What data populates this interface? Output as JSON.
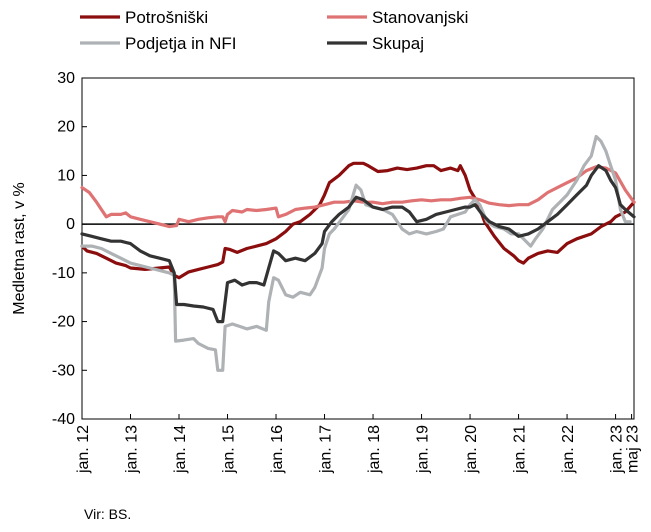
{
  "chart_data": {
    "type": "line",
    "ylabel": "Medletna rast, v %",
    "ylim": [
      -40,
      30
    ],
    "yticks": [
      30,
      20,
      10,
      0,
      -10,
      -20,
      -30,
      -40
    ],
    "xlim": [
      2012.0,
      2023.38
    ],
    "xticks": [
      {
        "x": 2012.0,
        "label": "jan. 12"
      },
      {
        "x": 2013.0,
        "label": "jan. 13"
      },
      {
        "x": 2014.0,
        "label": "jan. 14"
      },
      {
        "x": 2015.0,
        "label": "jan. 15"
      },
      {
        "x": 2016.0,
        "label": "jan. 16"
      },
      {
        "x": 2017.0,
        "label": "jan. 17"
      },
      {
        "x": 2018.0,
        "label": "jan. 18"
      },
      {
        "x": 2019.0,
        "label": "jan. 19"
      },
      {
        "x": 2020.0,
        "label": "jan. 20"
      },
      {
        "x": 2021.0,
        "label": "jan. 21"
      },
      {
        "x": 2022.0,
        "label": "jan. 22"
      },
      {
        "x": 2023.0,
        "label": "jan. 23"
      },
      {
        "x": 2023.33,
        "label": "maj 23"
      }
    ],
    "grid": false,
    "zero_line": true,
    "legend_position": "top",
    "series": [
      {
        "name": "Potrošniški",
        "color": "#8b0d0d",
        "width": 3.2,
        "points": [
          [
            2012.0,
            -4.5
          ],
          [
            2012.1,
            -5.5
          ],
          [
            2012.3,
            -6.0
          ],
          [
            2012.5,
            -7.0
          ],
          [
            2012.7,
            -8.0
          ],
          [
            2012.9,
            -8.5
          ],
          [
            2013.0,
            -9.0
          ],
          [
            2013.3,
            -9.3
          ],
          [
            2013.6,
            -9.0
          ],
          [
            2013.8,
            -8.8
          ],
          [
            2013.9,
            -10.5
          ],
          [
            2014.0,
            -11.0
          ],
          [
            2014.2,
            -9.8
          ],
          [
            2014.4,
            -9.3
          ],
          [
            2014.6,
            -8.8
          ],
          [
            2014.8,
            -8.3
          ],
          [
            2014.9,
            -7.8
          ],
          [
            2014.95,
            -5.0
          ],
          [
            2015.05,
            -5.2
          ],
          [
            2015.2,
            -5.8
          ],
          [
            2015.4,
            -5.0
          ],
          [
            2015.6,
            -4.5
          ],
          [
            2015.8,
            -4.0
          ],
          [
            2016.0,
            -3.0
          ],
          [
            2016.2,
            -1.5
          ],
          [
            2016.35,
            0.0
          ],
          [
            2016.5,
            0.5
          ],
          [
            2016.7,
            2.0
          ],
          [
            2016.9,
            4.0
          ],
          [
            2017.0,
            6.0
          ],
          [
            2017.1,
            8.5
          ],
          [
            2017.3,
            10.0
          ],
          [
            2017.5,
            12.0
          ],
          [
            2017.6,
            12.5
          ],
          [
            2017.8,
            12.5
          ],
          [
            2017.9,
            12.0
          ],
          [
            2018.1,
            10.8
          ],
          [
            2018.3,
            11.0
          ],
          [
            2018.5,
            11.5
          ],
          [
            2018.7,
            11.2
          ],
          [
            2018.9,
            11.5
          ],
          [
            2019.1,
            12.0
          ],
          [
            2019.25,
            12.0
          ],
          [
            2019.4,
            11.0
          ],
          [
            2019.6,
            11.5
          ],
          [
            2019.75,
            11.0
          ],
          [
            2019.8,
            12.0
          ],
          [
            2019.9,
            10.0
          ],
          [
            2020.0,
            7.0
          ],
          [
            2020.15,
            4.5
          ],
          [
            2020.3,
            0.5
          ],
          [
            2020.5,
            -2.5
          ],
          [
            2020.7,
            -5.0
          ],
          [
            2020.9,
            -6.5
          ],
          [
            2021.0,
            -7.5
          ],
          [
            2021.1,
            -8.0
          ],
          [
            2021.2,
            -7.0
          ],
          [
            2021.4,
            -6.0
          ],
          [
            2021.6,
            -5.5
          ],
          [
            2021.8,
            -5.8
          ],
          [
            2022.0,
            -4.0
          ],
          [
            2022.2,
            -3.0
          ],
          [
            2022.5,
            -2.0
          ],
          [
            2022.7,
            -0.5
          ],
          [
            2022.9,
            0.5
          ],
          [
            2023.0,
            1.5
          ],
          [
            2023.2,
            2.5
          ],
          [
            2023.38,
            4.5
          ]
        ]
      },
      {
        "name": "Stanovanjski",
        "color": "#df7373",
        "width": 3.2,
        "points": [
          [
            2012.0,
            7.5
          ],
          [
            2012.15,
            6.5
          ],
          [
            2012.3,
            4.5
          ],
          [
            2012.4,
            3.0
          ],
          [
            2012.5,
            1.5
          ],
          [
            2012.6,
            2.0
          ],
          [
            2012.8,
            2.0
          ],
          [
            2012.9,
            2.3
          ],
          [
            2013.0,
            1.5
          ],
          [
            2013.2,
            1.0
          ],
          [
            2013.4,
            0.5
          ],
          [
            2013.6,
            0.0
          ],
          [
            2013.8,
            -0.5
          ],
          [
            2013.95,
            -0.3
          ],
          [
            2014.0,
            1.0
          ],
          [
            2014.2,
            0.5
          ],
          [
            2014.4,
            1.0
          ],
          [
            2014.6,
            1.3
          ],
          [
            2014.8,
            1.5
          ],
          [
            2014.9,
            1.5
          ],
          [
            2014.95,
            0.5
          ],
          [
            2015.0,
            2.0
          ],
          [
            2015.1,
            2.8
          ],
          [
            2015.3,
            2.5
          ],
          [
            2015.4,
            3.0
          ],
          [
            2015.6,
            2.8
          ],
          [
            2015.8,
            3.0
          ],
          [
            2016.0,
            3.3
          ],
          [
            2016.05,
            1.5
          ],
          [
            2016.2,
            2.0
          ],
          [
            2016.4,
            3.0
          ],
          [
            2016.6,
            3.3
          ],
          [
            2016.8,
            3.5
          ],
          [
            2017.0,
            4.0
          ],
          [
            2017.2,
            4.5
          ],
          [
            2017.4,
            4.5
          ],
          [
            2017.6,
            4.8
          ],
          [
            2017.8,
            4.5
          ],
          [
            2018.0,
            4.5
          ],
          [
            2018.2,
            4.2
          ],
          [
            2018.4,
            4.5
          ],
          [
            2018.6,
            4.5
          ],
          [
            2018.8,
            4.8
          ],
          [
            2019.0,
            5.0
          ],
          [
            2019.2,
            4.8
          ],
          [
            2019.4,
            5.0
          ],
          [
            2019.6,
            5.0
          ],
          [
            2019.8,
            5.3
          ],
          [
            2020.0,
            5.5
          ],
          [
            2020.2,
            5.0
          ],
          [
            2020.4,
            4.3
          ],
          [
            2020.6,
            4.0
          ],
          [
            2020.8,
            3.8
          ],
          [
            2021.0,
            4.0
          ],
          [
            2021.2,
            4.0
          ],
          [
            2021.4,
            5.0
          ],
          [
            2021.6,
            6.5
          ],
          [
            2021.8,
            7.5
          ],
          [
            2022.0,
            8.5
          ],
          [
            2022.2,
            9.5
          ],
          [
            2022.4,
            11.0
          ],
          [
            2022.6,
            11.8
          ],
          [
            2022.8,
            11.5
          ],
          [
            2023.0,
            10.5
          ],
          [
            2023.2,
            7.0
          ],
          [
            2023.38,
            4.5
          ]
        ]
      },
      {
        "name": "Podjetja in NFI",
        "color": "#aeb2b5",
        "width": 3.2,
        "points": [
          [
            2012.0,
            -4.5
          ],
          [
            2012.2,
            -4.5
          ],
          [
            2012.4,
            -5.0
          ],
          [
            2012.6,
            -6.0
          ],
          [
            2012.8,
            -7.0
          ],
          [
            2013.0,
            -8.0
          ],
          [
            2013.2,
            -8.5
          ],
          [
            2013.4,
            -9.0
          ],
          [
            2013.6,
            -9.5
          ],
          [
            2013.8,
            -10.0
          ],
          [
            2013.9,
            -10.5
          ],
          [
            2013.93,
            -24.0
          ],
          [
            2014.1,
            -23.8
          ],
          [
            2014.3,
            -23.5
          ],
          [
            2014.4,
            -24.5
          ],
          [
            2014.6,
            -25.5
          ],
          [
            2014.75,
            -25.8
          ],
          [
            2014.8,
            -30.0
          ],
          [
            2014.9,
            -30.0
          ],
          [
            2014.95,
            -21.0
          ],
          [
            2015.1,
            -20.5
          ],
          [
            2015.25,
            -21.0
          ],
          [
            2015.4,
            -21.5
          ],
          [
            2015.6,
            -21.0
          ],
          [
            2015.8,
            -21.8
          ],
          [
            2015.85,
            -16.0
          ],
          [
            2015.95,
            -11.0
          ],
          [
            2016.05,
            -11.5
          ],
          [
            2016.2,
            -14.5
          ],
          [
            2016.35,
            -15.0
          ],
          [
            2016.5,
            -14.0
          ],
          [
            2016.7,
            -14.5
          ],
          [
            2016.8,
            -13.0
          ],
          [
            2016.95,
            -9.0
          ],
          [
            2017.0,
            -5.0
          ],
          [
            2017.1,
            -2.0
          ],
          [
            2017.2,
            -1.0
          ],
          [
            2017.35,
            1.0
          ],
          [
            2017.5,
            3.0
          ],
          [
            2017.65,
            8.0
          ],
          [
            2017.75,
            7.0
          ],
          [
            2017.85,
            4.0
          ],
          [
            2018.0,
            3.5
          ],
          [
            2018.2,
            3.0
          ],
          [
            2018.4,
            2.0
          ],
          [
            2018.6,
            -1.0
          ],
          [
            2018.75,
            -2.0
          ],
          [
            2018.9,
            -1.5
          ],
          [
            2019.1,
            -2.0
          ],
          [
            2019.3,
            -1.5
          ],
          [
            2019.45,
            -1.0
          ],
          [
            2019.6,
            1.5
          ],
          [
            2019.75,
            2.0
          ],
          [
            2019.9,
            2.5
          ],
          [
            2020.0,
            4.0
          ],
          [
            2020.1,
            5.0
          ],
          [
            2020.2,
            4.0
          ],
          [
            2020.35,
            0.5
          ],
          [
            2020.5,
            -0.5
          ],
          [
            2020.7,
            -1.0
          ],
          [
            2020.85,
            -2.0
          ],
          [
            2021.0,
            -2.0
          ],
          [
            2021.1,
            -3.0
          ],
          [
            2021.25,
            -4.5
          ],
          [
            2021.35,
            -3.0
          ],
          [
            2021.5,
            -1.0
          ],
          [
            2021.7,
            3.0
          ],
          [
            2021.85,
            4.5
          ],
          [
            2022.0,
            6.0
          ],
          [
            2022.2,
            9.0
          ],
          [
            2022.35,
            12.0
          ],
          [
            2022.5,
            14.0
          ],
          [
            2022.6,
            18.0
          ],
          [
            2022.7,
            17.0
          ],
          [
            2022.8,
            15.0
          ],
          [
            2022.9,
            12.0
          ],
          [
            2023.0,
            9.0
          ],
          [
            2023.1,
            3.0
          ],
          [
            2023.2,
            0.5
          ],
          [
            2023.3,
            0.5
          ]
        ]
      },
      {
        "name": "Skupaj",
        "color": "#333333",
        "width": 3.2,
        "points": [
          [
            2012.0,
            -2.0
          ],
          [
            2012.2,
            -2.5
          ],
          [
            2012.4,
            -3.0
          ],
          [
            2012.6,
            -3.5
          ],
          [
            2012.8,
            -3.5
          ],
          [
            2013.0,
            -4.0
          ],
          [
            2013.2,
            -5.5
          ],
          [
            2013.4,
            -6.5
          ],
          [
            2013.6,
            -7.0
          ],
          [
            2013.8,
            -7.5
          ],
          [
            2013.9,
            -10.0
          ],
          [
            2013.95,
            -16.5
          ],
          [
            2014.1,
            -16.5
          ],
          [
            2014.3,
            -16.8
          ],
          [
            2014.5,
            -17.0
          ],
          [
            2014.7,
            -17.5
          ],
          [
            2014.8,
            -20.0
          ],
          [
            2014.9,
            -20.0
          ],
          [
            2015.0,
            -12.0
          ],
          [
            2015.15,
            -11.5
          ],
          [
            2015.3,
            -12.5
          ],
          [
            2015.45,
            -12.0
          ],
          [
            2015.6,
            -12.0
          ],
          [
            2015.75,
            -12.5
          ],
          [
            2015.85,
            -9.0
          ],
          [
            2015.95,
            -5.5
          ],
          [
            2016.05,
            -6.0
          ],
          [
            2016.2,
            -7.5
          ],
          [
            2016.4,
            -7.0
          ],
          [
            2016.6,
            -7.5
          ],
          [
            2016.8,
            -6.0
          ],
          [
            2016.95,
            -4.0
          ],
          [
            2017.0,
            -1.5
          ],
          [
            2017.15,
            0.5
          ],
          [
            2017.3,
            2.0
          ],
          [
            2017.5,
            3.5
          ],
          [
            2017.65,
            5.5
          ],
          [
            2017.8,
            5.0
          ],
          [
            2018.0,
            3.5
          ],
          [
            2018.2,
            3.0
          ],
          [
            2018.4,
            3.5
          ],
          [
            2018.6,
            3.5
          ],
          [
            2018.75,
            2.5
          ],
          [
            2018.9,
            0.5
          ],
          [
            2019.1,
            1.0
          ],
          [
            2019.3,
            2.0
          ],
          [
            2019.5,
            2.5
          ],
          [
            2019.7,
            3.0
          ],
          [
            2019.9,
            3.5
          ],
          [
            2020.0,
            3.5
          ],
          [
            2020.1,
            4.0
          ],
          [
            2020.25,
            2.0
          ],
          [
            2020.4,
            0.5
          ],
          [
            2020.6,
            -0.5
          ],
          [
            2020.8,
            -1.0
          ],
          [
            2021.0,
            -2.5
          ],
          [
            2021.2,
            -2.0
          ],
          [
            2021.4,
            -1.0
          ],
          [
            2021.6,
            0.5
          ],
          [
            2021.8,
            2.0
          ],
          [
            2022.0,
            4.0
          ],
          [
            2022.2,
            6.0
          ],
          [
            2022.4,
            8.0
          ],
          [
            2022.5,
            10.0
          ],
          [
            2022.65,
            12.0
          ],
          [
            2022.8,
            11.0
          ],
          [
            2022.9,
            9.0
          ],
          [
            2023.0,
            7.5
          ],
          [
            2023.1,
            4.0
          ],
          [
            2023.2,
            3.0
          ],
          [
            2023.38,
            1.5
          ]
        ]
      }
    ],
    "source": "Vir: BS."
  }
}
